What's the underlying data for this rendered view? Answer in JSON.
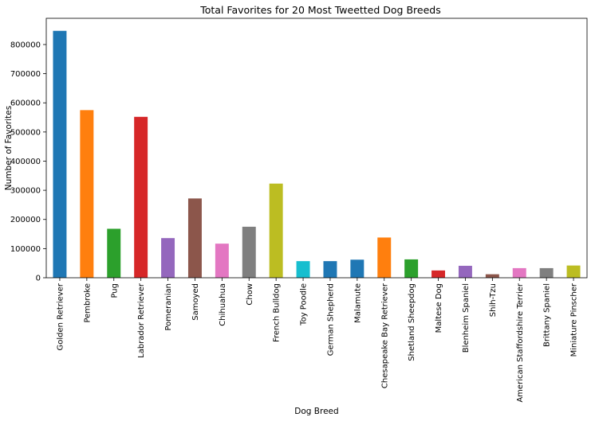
{
  "chart_data": {
    "type": "bar",
    "title": "Total Favorites for 20 Most Tweetted Dog Breeds",
    "xlabel": "Dog Breed",
    "ylabel": "Number of Favorites",
    "ylim": [
      0,
      890000
    ],
    "yticks": [
      0,
      100000,
      200000,
      300000,
      400000,
      500000,
      600000,
      700000,
      800000
    ],
    "ytick_labels": [
      "0",
      "100000",
      "200000",
      "300000",
      "400000",
      "500000",
      "600000",
      "700000",
      "800000"
    ],
    "grid": false,
    "legend": "none",
    "categories": [
      "Golden Retriever",
      "Pembroke",
      "Pug",
      "Labrador Retriever",
      "Pomeranian",
      "Samoyed",
      "Chihuahua",
      "Chow",
      "French Bulldog",
      "Toy Poodle",
      "German Shepherd",
      "Malamute",
      "Chesapeake Bay Retriever",
      "Shetland Sheepdog",
      "Maltese Dog",
      "Blenheim Spaniel",
      "Shih-Tzu",
      "American Staffordshire Terrier",
      "Brittany Spaniel",
      "Miniature Pinscher"
    ],
    "values": [
      847000,
      575000,
      168000,
      552000,
      136000,
      272000,
      117000,
      175000,
      323000,
      57000,
      57000,
      62000,
      138000,
      63000,
      25000,
      41000,
      12000,
      33000,
      33000,
      42000
    ],
    "colors": [
      "#1f77b4",
      "#ff7f0e",
      "#2ca02c",
      "#d62728",
      "#9467bd",
      "#8c564b",
      "#e377c2",
      "#7f7f7f",
      "#bcbd22",
      "#17becf",
      "#1f77b4",
      "#1f77b4",
      "#ff7f0e",
      "#2ca02c",
      "#d62728",
      "#9467bd",
      "#8c564b",
      "#e377c2",
      "#7f7f7f",
      "#bcbd22"
    ]
  }
}
